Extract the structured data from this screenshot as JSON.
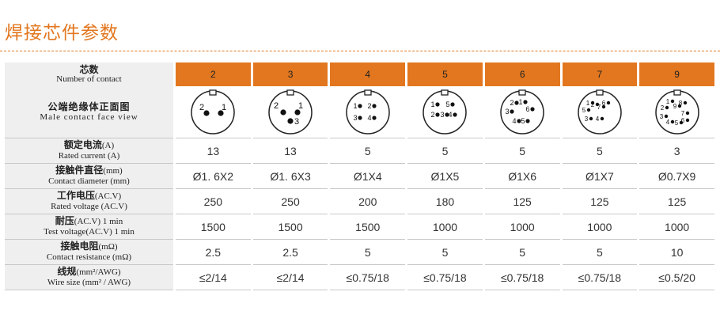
{
  "title": "焊接芯件参数",
  "columns": [
    "2",
    "3",
    "4",
    "5",
    "6",
    "7",
    "9"
  ],
  "header": {
    "zh": "芯数",
    "en": "Number of contact"
  },
  "face": {
    "label_zh": "公端绝缘体正面图",
    "label_en": "Male contact face view",
    "diagrams": [
      {
        "pins": [
          "2",
          "1"
        ]
      },
      {
        "pins": [
          "2",
          "1",
          "3"
        ]
      },
      {
        "pins": [
          "1",
          "2",
          "3",
          "4"
        ]
      },
      {
        "pins": [
          "1",
          "5",
          "2",
          "3",
          "4"
        ]
      },
      {
        "pins": [
          "2",
          "1",
          "6",
          "3",
          "4",
          "5"
        ]
      },
      {
        "pins": [
          "1",
          "6",
          "2",
          "7",
          "5",
          "3",
          "4"
        ]
      },
      {
        "pins": [
          "1",
          "8",
          "2",
          "9",
          "7",
          "3",
          "6",
          "4",
          "5"
        ]
      }
    ]
  },
  "rows": [
    {
      "zh": "额定电流",
      "unit": "(A)",
      "en": "Rated current (A)",
      "values": [
        "13",
        "13",
        "5",
        "5",
        "5",
        "5",
        "3"
      ]
    },
    {
      "zh": "接触件直径",
      "unit": "(mm)",
      "en": "Contact diameter (mm)",
      "values": [
        "Ø1. 6X2",
        "Ø1. 6X3",
        "Ø1X4",
        "Ø1X5",
        "Ø1X6",
        "Ø1X7",
        "Ø0.7X9"
      ]
    },
    {
      "zh": "工作电压",
      "unit": "(AC.V)",
      "en": "Rated voltage (AC.V)",
      "values": [
        "250",
        "250",
        "200",
        "180",
        "125",
        "125",
        "125"
      ]
    },
    {
      "zh": "耐压",
      "unit": "(AC.V) 1 min",
      "en": "Test voltage(AC.V) 1 min",
      "values": [
        "1500",
        "1500",
        "1500",
        "1000",
        "1000",
        "1000",
        "1000"
      ]
    },
    {
      "zh": "接触电阻",
      "unit": "(mΩ)",
      "en": "Contact resistance (mΩ)",
      "values": [
        "2.5",
        "2.5",
        "5",
        "5",
        "5",
        "5",
        "10"
      ]
    },
    {
      "zh": "线规",
      "unit": "(mm²/AWG)",
      "en": "Wire size (mm² / AWG)",
      "values": [
        "≤2/14",
        "≤2/14",
        "≤0.75/18",
        "≤0.75/18",
        "≤0.75/18",
        "≤0.75/18",
        "≤0.5/20"
      ]
    }
  ]
}
